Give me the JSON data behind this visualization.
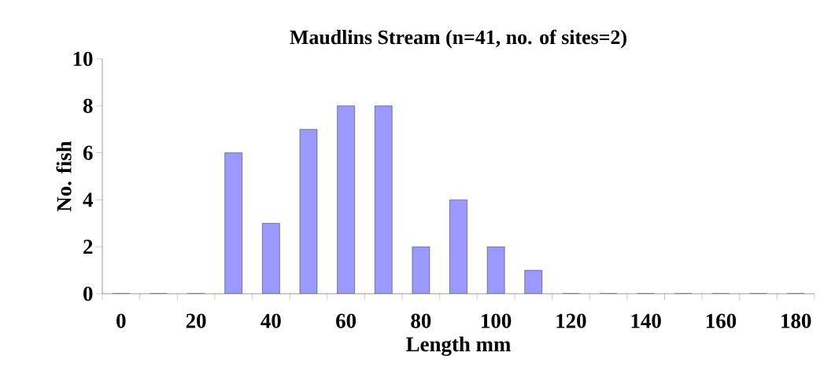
{
  "chart_data": {
    "type": "bar",
    "title": "Maudlins Stream (n=41, no. of sites=2)",
    "xlabel": "Length mm",
    "ylabel": "No. fish",
    "categories": [
      "0",
      null,
      "20",
      null,
      "40",
      null,
      "60",
      null,
      "80",
      null,
      "100",
      null,
      "120",
      null,
      "140",
      null,
      "160",
      null,
      "180"
    ],
    "values": [
      0,
      0,
      0,
      6,
      3,
      7,
      8,
      8,
      2,
      4,
      2,
      1,
      0,
      0,
      0,
      0,
      0,
      0,
      0
    ],
    "color": "#9999ff",
    "ylim": [
      0,
      10
    ],
    "yticks": [
      0,
      2,
      4,
      6,
      8,
      10
    ]
  }
}
